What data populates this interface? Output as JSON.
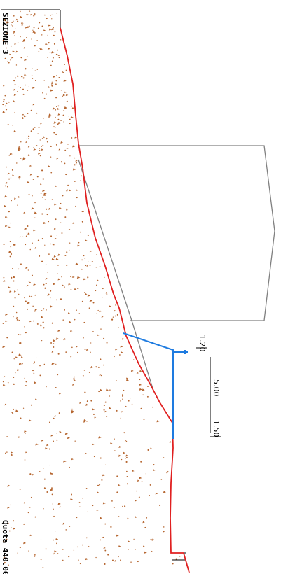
{
  "section_label": "SEZIONE 3",
  "elevation_label": "Quota 440.00",
  "dimensions": {
    "d1": "1.20",
    "d2": "5.00",
    "d3": "1.50"
  },
  "colors": {
    "ground": "#e02020",
    "design": "#1e7be0",
    "outline": "#808080",
    "soil": "#b5652f"
  }
}
